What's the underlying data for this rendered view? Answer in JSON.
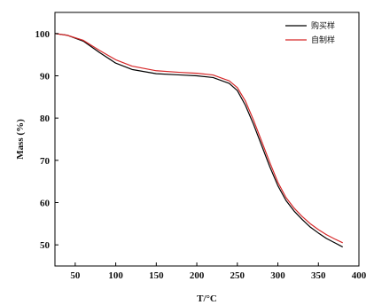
{
  "chart_data": {
    "type": "line",
    "xlabel": "T/°C",
    "ylabel": "Mass (%)",
    "xlim": [
      25,
      400
    ],
    "ylim": [
      45,
      105
    ],
    "xticks": [
      50,
      100,
      150,
      200,
      250,
      300,
      350,
      400
    ],
    "yticks": [
      50,
      60,
      70,
      80,
      90,
      100
    ],
    "grid": false,
    "legend_position": "top-right",
    "series": [
      {
        "name": "购买样",
        "color": "#000000",
        "x": [
          25,
          40,
          60,
          80,
          100,
          120,
          150,
          180,
          200,
          220,
          240,
          250,
          260,
          270,
          280,
          290,
          300,
          310,
          320,
          330,
          340,
          350,
          360,
          370,
          380
        ],
        "y": [
          100,
          99.6,
          98.2,
          95.5,
          93.0,
          91.5,
          90.5,
          90.2,
          90.0,
          89.6,
          88.2,
          86.5,
          83.0,
          78.5,
          73.5,
          68.5,
          64.0,
          60.5,
          58.0,
          56.0,
          54.2,
          52.8,
          51.5,
          50.5,
          49.5
        ]
      },
      {
        "name": "自制样",
        "color": "#d62728",
        "x": [
          25,
          40,
          60,
          80,
          100,
          120,
          150,
          180,
          200,
          220,
          240,
          250,
          260,
          270,
          280,
          290,
          300,
          310,
          320,
          330,
          340,
          350,
          360,
          370,
          380
        ],
        "y": [
          100,
          99.6,
          98.4,
          96.0,
          93.8,
          92.3,
          91.2,
          90.8,
          90.6,
          90.2,
          88.8,
          87.2,
          84.0,
          79.5,
          74.5,
          69.5,
          64.8,
          61.2,
          58.7,
          56.7,
          55.0,
          53.6,
          52.4,
          51.4,
          50.5
        ]
      }
    ]
  }
}
